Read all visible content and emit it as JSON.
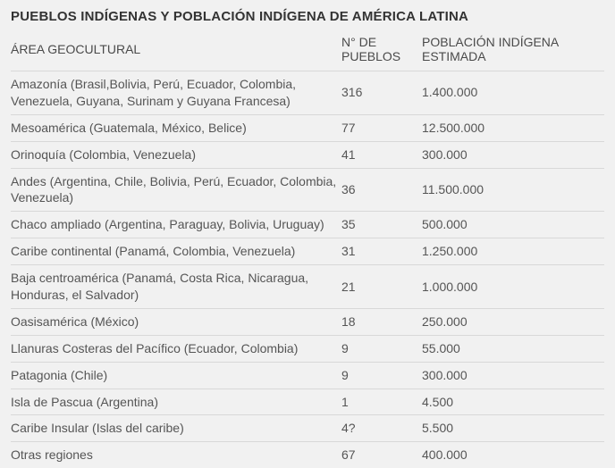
{
  "title": "PUEBLOS INDÍGENAS Y POBLACIÓN INDÍGENA DE AMÉRICA LATINA",
  "columns": {
    "area": "ÁREA GEOCULTURAL",
    "num": "N° DE PUEBLOS",
    "pop": "POBLACIÓN INDÍGENA ESTIMADA"
  },
  "rows": [
    {
      "area": "Amazonía (Brasil,Bolivia, Perú, Ecuador, Colombia, Venezuela, Guyana, Surinam y Guyana Francesa)",
      "num": "316",
      "pop": "1.400.000"
    },
    {
      "area": "Mesoamérica (Guatemala, México, Belice)",
      "num": "77",
      "pop": "12.500.000"
    },
    {
      "area": "Orinoquía (Colombia, Venezuela)",
      "num": "41",
      "pop": "300.000"
    },
    {
      "area": "Andes (Argentina, Chile, Bolivia, Perú, Ecuador, Colombia, Venezuela)",
      "num": "36",
      "pop": "11.500.000"
    },
    {
      "area": "Chaco ampliado (Argentina, Paraguay, Bolivia, Uruguay)",
      "num": "35",
      "pop": "500.000"
    },
    {
      "area": "Caribe continental (Panamá, Colombia, Venezuela)",
      "num": "31",
      "pop": "1.250.000"
    },
    {
      "area": "Baja centroamérica (Panamá, Costa Rica, Nicaragua, Honduras, el Salvador)",
      "num": "21",
      "pop": "1.000.000"
    },
    {
      "area": "Oasisamérica (México)",
      "num": "18",
      "pop": "250.000"
    },
    {
      "area": "Llanuras Costeras del Pacífico (Ecuador, Colombia)",
      "num": "9",
      "pop": "55.000"
    },
    {
      "area": "Patagonia  (Chile)",
      "num": "9",
      "pop": "300.000"
    },
    {
      "area": "Isla de Pascua (Argentina)",
      "num": "1",
      "pop": "4.500"
    },
    {
      "area": "Caribe Insular (Islas del caribe)",
      "num": "4?",
      "pop": "5.500"
    },
    {
      "area": "Otras regiones",
      "num": "67",
      "pop": "400.000"
    }
  ]
}
